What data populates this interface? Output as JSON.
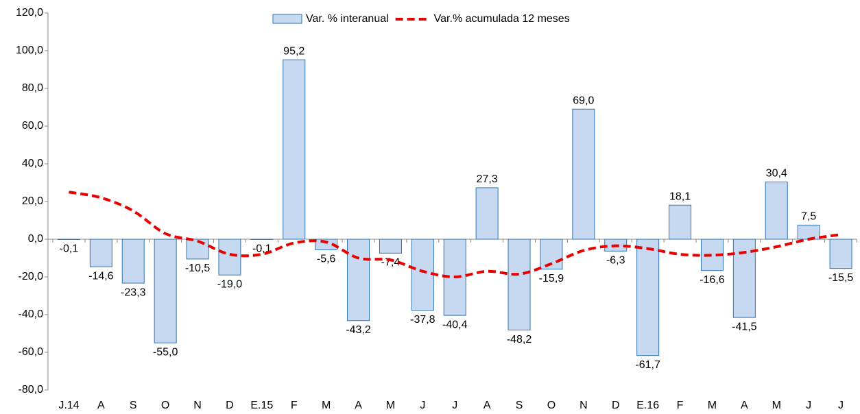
{
  "chart_data": {
    "type": "bar_line",
    "categories": [
      "J.14",
      "A",
      "S",
      "O",
      "N",
      "D",
      "E.15",
      "F",
      "M",
      "A",
      "M",
      "J",
      "J",
      "A",
      "S",
      "O",
      "N",
      "D",
      "E.16",
      "F",
      "M",
      "A",
      "M",
      "J",
      "J"
    ],
    "series": [
      {
        "name": "Var. % interanual",
        "type": "bar",
        "color": "#c6d9f1",
        "edge_color": "#2e75b6",
        "values": [
          -0.1,
          -14.6,
          -23.3,
          -55.0,
          -10.5,
          -19.0,
          -0.1,
          95.2,
          -5.6,
          -43.2,
          -7.4,
          -37.8,
          -40.4,
          27.3,
          -48.2,
          -15.9,
          69.0,
          -6.3,
          -61.7,
          18.1,
          -16.6,
          -41.5,
          30.4,
          7.5,
          -15.5
        ],
        "value_labels": [
          "-0,1",
          "-14,6",
          "-23,3",
          "-55,0",
          "-10,5",
          "-19,0",
          "-0,1",
          "95,2",
          "-5,6",
          "-43,2",
          "-7,4",
          "-37,8",
          "-40,4",
          "27,3",
          "-48,2",
          "-15,9",
          "69,0",
          "-6,3",
          "-61,7",
          "18,1",
          "-16,6",
          "-41,5",
          "30,4",
          "7,5",
          "-15,5"
        ]
      },
      {
        "name": "Var.% acumulada 12 meses",
        "type": "line",
        "color": "#e60000",
        "dashed": true,
        "values": [
          25,
          22,
          15,
          3,
          -1,
          -8,
          -8,
          -2,
          -1.5,
          -10,
          -11,
          -17,
          -20,
          -17,
          -18.5,
          -13,
          -6,
          -3.5,
          -5,
          -8,
          -8.5,
          -7,
          -4,
          0,
          2.5
        ]
      }
    ],
    "ylim": [
      -80,
      120
    ],
    "yticks": [
      {
        "value": -80,
        "label": "-80,0"
      },
      {
        "value": -60,
        "label": "-60,0"
      },
      {
        "value": -40,
        "label": "-40,0"
      },
      {
        "value": -20,
        "label": "-20,0"
      },
      {
        "value": 0,
        "label": "0,0"
      },
      {
        "value": 20,
        "label": "20,0"
      },
      {
        "value": 40,
        "label": "40,0"
      },
      {
        "value": 60,
        "label": "60,0"
      },
      {
        "value": 80,
        "label": "80,0"
      },
      {
        "value": 100,
        "label": "100,0"
      },
      {
        "value": 120,
        "label": "120,0"
      }
    ],
    "legend": "top"
  }
}
